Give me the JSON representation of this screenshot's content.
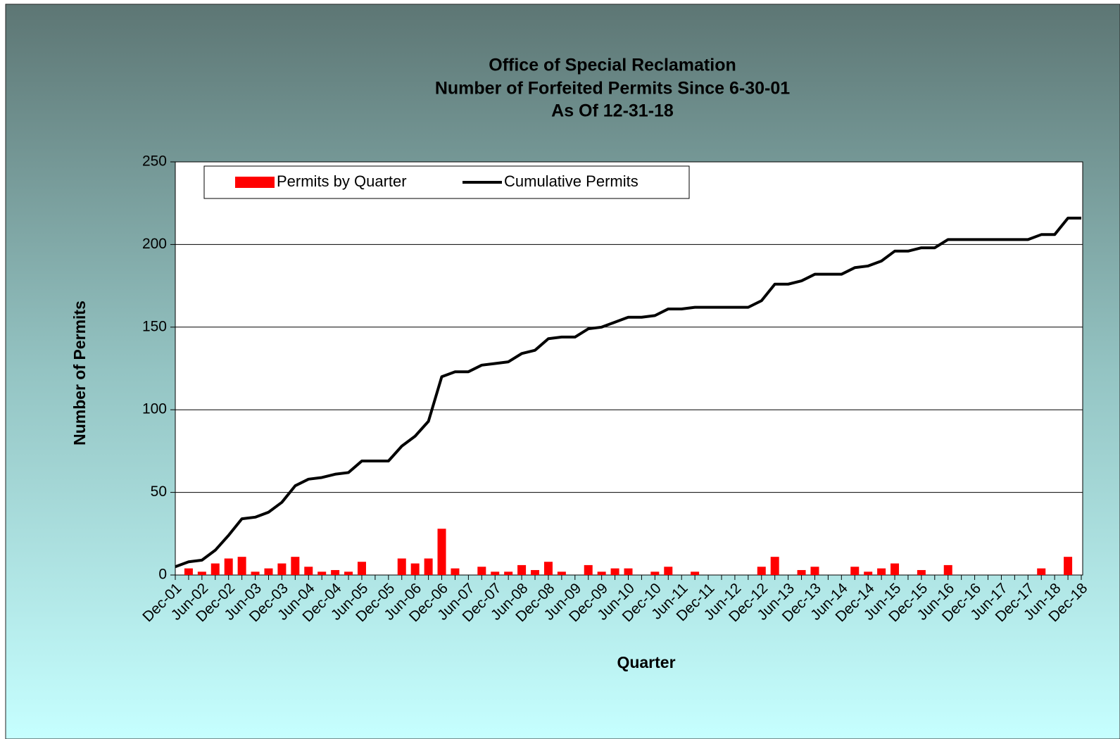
{
  "chart_data": {
    "type": "bar-line",
    "title": [
      "Office of Special Reclamation",
      "Number of Forfeited Permits Since 6-30-01",
      "As Of 12-31-18"
    ],
    "x_label": "Quarter",
    "y_label": "Number of Permits",
    "categories": [
      "Dec-01",
      null,
      "Jun-02",
      null,
      "Dec-02",
      null,
      "Jun-03",
      null,
      "Dec-03",
      null,
      "Jun-04",
      null,
      "Dec-04",
      null,
      "Jun-05",
      null,
      "Dec-05",
      null,
      "Jun-06",
      null,
      "Dec-06",
      null,
      "Jun-07",
      null,
      "Dec-07",
      null,
      "Jun-08",
      null,
      "Dec-08",
      null,
      "Jun-09",
      null,
      "Dec-09",
      null,
      "Jun-10",
      null,
      "Dec-10",
      null,
      "Jun-11",
      null,
      "Dec-11",
      null,
      "Jun-12",
      null,
      "Dec-12",
      null,
      "Jun-13",
      null,
      "Dec-13",
      null,
      "Jun-14",
      null,
      "Dec-14",
      null,
      "Jun-15",
      null,
      "Dec-15",
      null,
      "Jun-16",
      null,
      "Dec-16",
      null,
      "Jun-17",
      null,
      "Dec-17",
      null,
      "Jun-18",
      null,
      "Dec-18"
    ],
    "series": [
      {
        "name": "Permits by Quarter",
        "type": "bar",
        "color": "#ff0000",
        "values": [
          0,
          4,
          2,
          7,
          10,
          11,
          2,
          4,
          7,
          11,
          5,
          2,
          3,
          2,
          8,
          0,
          0,
          10,
          7,
          10,
          28,
          4,
          0,
          5,
          2,
          2,
          6,
          3,
          8,
          2,
          0,
          6,
          2,
          4,
          4,
          0,
          2,
          5,
          0,
          2,
          0,
          0,
          0,
          0,
          5,
          11,
          0,
          3,
          5,
          0,
          0,
          5,
          2,
          4,
          7,
          0,
          3,
          0,
          6,
          0,
          0,
          0,
          0,
          0,
          0,
          4,
          0,
          11,
          0
        ]
      },
      {
        "name": "Cumulative Permits",
        "type": "line",
        "color": "#000000",
        "values": [
          5,
          8,
          9,
          15,
          24,
          34,
          35,
          38,
          44,
          54,
          58,
          59,
          61,
          62,
          69,
          69,
          69,
          78,
          84,
          93,
          120,
          123,
          123,
          127,
          128,
          129,
          134,
          136,
          143,
          144,
          144,
          149,
          150,
          153,
          156,
          156,
          157,
          161,
          161,
          162,
          162,
          162,
          162,
          162,
          166,
          176,
          176,
          178,
          182,
          182,
          182,
          186,
          187,
          190,
          196,
          196,
          198,
          198,
          203,
          203,
          203,
          203,
          203,
          203,
          203,
          206,
          206,
          216,
          216
        ]
      }
    ],
    "ylim": [
      0,
      250
    ],
    "yticks": [
      0,
      50,
      100,
      150,
      200,
      250
    ],
    "grid": true,
    "legend": "upper left"
  }
}
